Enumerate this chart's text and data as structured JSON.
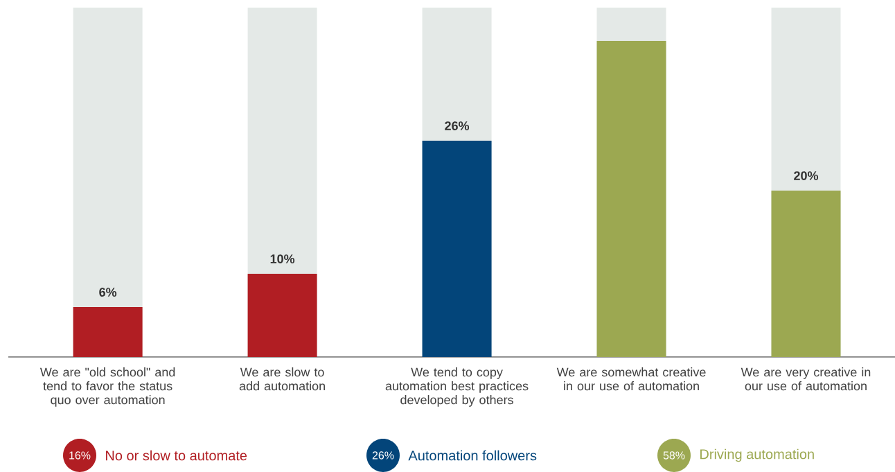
{
  "chart_data": {
    "type": "bar",
    "categories": [
      "We are \"old school\" and tend to favor the status quo over automation",
      "We are slow to add automation",
      "We tend to copy automation best practices developed by others",
      "We are somewhat creative in our use of automation",
      "We are very creative in our use of automation"
    ],
    "series": [
      {
        "name": "No or slow to automate",
        "color": "#b11e23",
        "values": [
          6,
          10,
          null,
          null,
          null
        ],
        "value_labels": [
          "6%",
          "10%",
          null,
          null,
          null
        ]
      },
      {
        "name": "Automation followers",
        "color": "#03457a",
        "values": [
          null,
          null,
          26,
          null,
          null
        ],
        "value_labels": [
          null,
          null,
          "26%",
          null,
          null
        ]
      },
      {
        "name": "Driving automation",
        "color": "#9ca851",
        "values": [
          null,
          null,
          null,
          38,
          20
        ],
        "value_labels": [
          null,
          null,
          null,
          null,
          "20%"
        ]
      }
    ],
    "annotations": [
      "16%",
      "26%",
      "58%"
    ],
    "legend": "bottom"
  }
}
